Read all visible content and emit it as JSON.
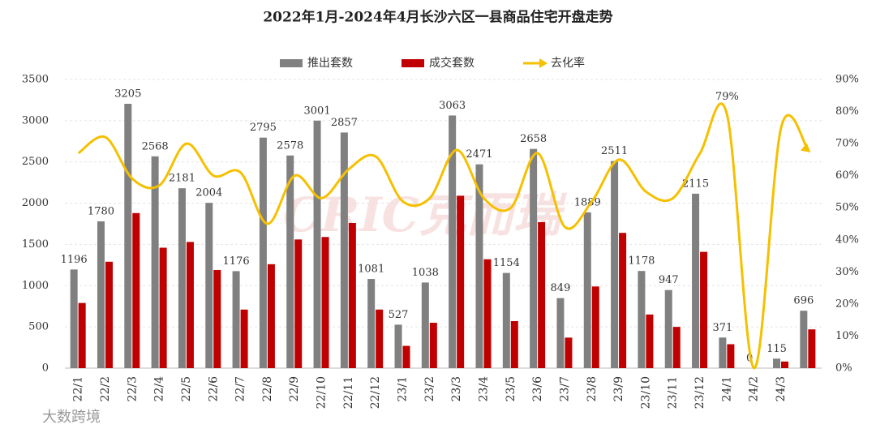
{
  "chart_data": {
    "type": "bar_line",
    "title": "2022年1月-2024年4月长沙六区一县商品住宅开盘走势",
    "watermark": "CRIC克而瑞",
    "source": "大数跨境",
    "categories": [
      "22/1",
      "22/2",
      "22/3",
      "22/4",
      "22/5",
      "22/6",
      "22/7",
      "22/8",
      "22/9",
      "22/10",
      "22/11",
      "22/12",
      "23/1",
      "23/2",
      "23/3",
      "23/4",
      "23/5",
      "23/6",
      "23/7",
      "23/8",
      "23/9",
      "23/10",
      "23/11",
      "23/12",
      "24/1",
      "24/2",
      "24/3",
      null
    ],
    "series": [
      {
        "name": "推出套数",
        "type": "bar",
        "color": "#808080",
        "values": [
          1196,
          1780,
          3205,
          2568,
          2181,
          2004,
          1176,
          2795,
          2578,
          3001,
          2857,
          1081,
          527,
          1038,
          3063,
          2471,
          1154,
          2658,
          849,
          1889,
          2511,
          1178,
          947,
          2115,
          371,
          0,
          115,
          696
        ]
      },
      {
        "name": "成交套数",
        "type": "bar",
        "color": "#c00000",
        "values": [
          790,
          1290,
          1880,
          1460,
          1530,
          1190,
          710,
          1260,
          1560,
          1590,
          1760,
          710,
          270,
          550,
          2090,
          1320,
          570,
          1770,
          370,
          990,
          1640,
          650,
          500,
          1410,
          290,
          0,
          80,
          470
        ]
      },
      {
        "name": "去化率",
        "type": "line",
        "axis": "y2",
        "color": "#f5c000",
        "values": [
          67,
          72,
          59,
          57,
          70,
          60,
          61,
          45,
          60,
          53,
          62,
          66,
          52,
          53,
          68,
          53,
          50,
          67,
          44,
          52,
          65,
          55,
          53,
          67,
          79,
          0,
          75,
          68
        ],
        "value_labels": [
          null,
          null,
          null,
          null,
          null,
          null,
          null,
          null,
          null,
          null,
          null,
          null,
          null,
          null,
          null,
          null,
          null,
          null,
          null,
          null,
          null,
          null,
          null,
          null,
          "79%",
          null,
          null,
          null
        ]
      }
    ],
    "ylim": [
      0,
      3500
    ],
    "yticks": [
      0,
      500,
      1000,
      1500,
      2000,
      2500,
      3000,
      3500
    ],
    "y2lim": [
      0,
      90
    ],
    "y2ticks": [
      {
        "value": 0,
        "label": "0%"
      },
      {
        "value": 10,
        "label": "10%"
      },
      {
        "value": 20,
        "label": "20%"
      },
      {
        "value": 30,
        "label": "30%"
      },
      {
        "value": 40,
        "label": "40%"
      },
      {
        "value": 50,
        "label": "50%"
      },
      {
        "value": 60,
        "label": "60%"
      },
      {
        "value": 70,
        "label": "70%"
      },
      {
        "value": 80,
        "label": "80%"
      },
      {
        "value": 90,
        "label": "90%"
      }
    ],
    "grid": true,
    "legend": "top"
  }
}
